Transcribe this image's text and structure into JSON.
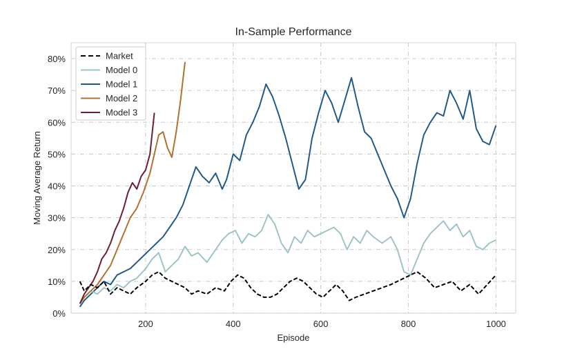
{
  "chart_data": {
    "type": "line",
    "title": "In-Sample Performance",
    "xlabel": "Episode",
    "ylabel": "Moving Average Return",
    "xlim": [
      30,
      1045
    ],
    "ylim": [
      0,
      85
    ],
    "x_ticks": [
      200,
      400,
      600,
      800,
      1000
    ],
    "x_tick_labels": [
      "200",
      "400",
      "600",
      "800",
      "1000"
    ],
    "y_ticks": [
      0,
      10,
      20,
      30,
      40,
      50,
      60,
      70,
      80
    ],
    "y_tick_labels": [
      "0%",
      "10%",
      "20%",
      "30%",
      "40%",
      "50%",
      "60%",
      "70%",
      "80%"
    ],
    "grid": true,
    "legend_position": "upper-left",
    "series": [
      {
        "name": "Market",
        "color": "#000000",
        "dash": true,
        "x": [
          50,
          60,
          75,
          90,
          105,
          120,
          135,
          150,
          165,
          180,
          200,
          215,
          230,
          245,
          260,
          275,
          290,
          305,
          320,
          340,
          360,
          380,
          395,
          410,
          425,
          440,
          455,
          470,
          485,
          500,
          515,
          530,
          545,
          560,
          575,
          590,
          605,
          620,
          635,
          650,
          665,
          680,
          700,
          720,
          740,
          760,
          775,
          790,
          805,
          820,
          840,
          860,
          880,
          900,
          920,
          940,
          960,
          980,
          1000
        ],
        "y": [
          10,
          7,
          9,
          8,
          10,
          6,
          8,
          7,
          6,
          8,
          10,
          12,
          13,
          11,
          10,
          9,
          8,
          6,
          7,
          6,
          8,
          7,
          10,
          12,
          11,
          8,
          6,
          5,
          5,
          6,
          8,
          10,
          11,
          10,
          8,
          6,
          5,
          7,
          9,
          7,
          4,
          5,
          6,
          7,
          8,
          9,
          10,
          11,
          12,
          13,
          11,
          8,
          9,
          10,
          7,
          9,
          6,
          9,
          12
        ]
      },
      {
        "name": "Model 0",
        "color": "#9fc4c7",
        "dash": false,
        "x": [
          50,
          60,
          75,
          90,
          105,
          120,
          135,
          150,
          165,
          180,
          200,
          215,
          230,
          245,
          260,
          275,
          290,
          305,
          320,
          340,
          360,
          375,
          390,
          405,
          420,
          435,
          450,
          465,
          480,
          495,
          510,
          525,
          540,
          555,
          570,
          585,
          600,
          615,
          630,
          645,
          660,
          675,
          690,
          705,
          720,
          740,
          760,
          775,
          790,
          805,
          820,
          835,
          850,
          865,
          880,
          895,
          910,
          925,
          940,
          955,
          970,
          985,
          1000
        ],
        "y": [
          3,
          5,
          7,
          6,
          8,
          7,
          9,
          8,
          10,
          11,
          14,
          17,
          19,
          13,
          15,
          17,
          21,
          18,
          19,
          16,
          20,
          23,
          25,
          26,
          22,
          25,
          24,
          26,
          31,
          28,
          22,
          19,
          24,
          22,
          26,
          24,
          25,
          26,
          27,
          25,
          20,
          24,
          22,
          26,
          24,
          22,
          24,
          20,
          13,
          12,
          17,
          22,
          25,
          27,
          29,
          26,
          28,
          24,
          26,
          21,
          20,
          22,
          23
        ]
      },
      {
        "name": "Model 1",
        "color": "#1f5a8a",
        "dash": false,
        "x": [
          50,
          60,
          75,
          90,
          105,
          120,
          135,
          150,
          165,
          180,
          195,
          210,
          225,
          240,
          255,
          270,
          285,
          300,
          315,
          330,
          345,
          360,
          375,
          385,
          400,
          415,
          430,
          445,
          460,
          475,
          490,
          505,
          520,
          535,
          550,
          565,
          580,
          595,
          610,
          625,
          640,
          655,
          670,
          685,
          700,
          715,
          730,
          745,
          760,
          775,
          790,
          805,
          820,
          835,
          850,
          865,
          880,
          895,
          910,
          925,
          940,
          955,
          970,
          985,
          1000
        ],
        "y": [
          2,
          4,
          6,
          8,
          10,
          9,
          12,
          13,
          14,
          16,
          18,
          20,
          22,
          24,
          27,
          30,
          34,
          40,
          46,
          43,
          41,
          44,
          39,
          42,
          50,
          48,
          56,
          60,
          65,
          72,
          68,
          62,
          55,
          47,
          39,
          42,
          55,
          63,
          70,
          66,
          60,
          67,
          74,
          65,
          57,
          55,
          50,
          45,
          40,
          36,
          30,
          36,
          47,
          56,
          60,
          63,
          62,
          70,
          66,
          61,
          70,
          58,
          54,
          53,
          59
        ]
      },
      {
        "name": "Model 2",
        "color": "#b0722e",
        "dash": false,
        "x": [
          50,
          60,
          75,
          90,
          105,
          120,
          135,
          150,
          165,
          180,
          195,
          210,
          220,
          230,
          240,
          250,
          260,
          270,
          280,
          290
        ],
        "y": [
          3,
          5,
          7,
          9,
          12,
          15,
          20,
          25,
          30,
          33,
          38,
          44,
          50,
          56,
          57,
          52,
          49,
          57,
          67,
          79
        ]
      },
      {
        "name": "Model 3",
        "color": "#6b1f33",
        "dash": false,
        "x": [
          50,
          60,
          70,
          80,
          90,
          100,
          110,
          120,
          130,
          140,
          150,
          160,
          170,
          180,
          190,
          200,
          210,
          220
        ],
        "y": [
          3,
          6,
          8,
          10,
          13,
          17,
          19,
          22,
          26,
          29,
          33,
          38,
          41,
          39,
          43,
          45,
          50,
          63
        ]
      }
    ]
  }
}
